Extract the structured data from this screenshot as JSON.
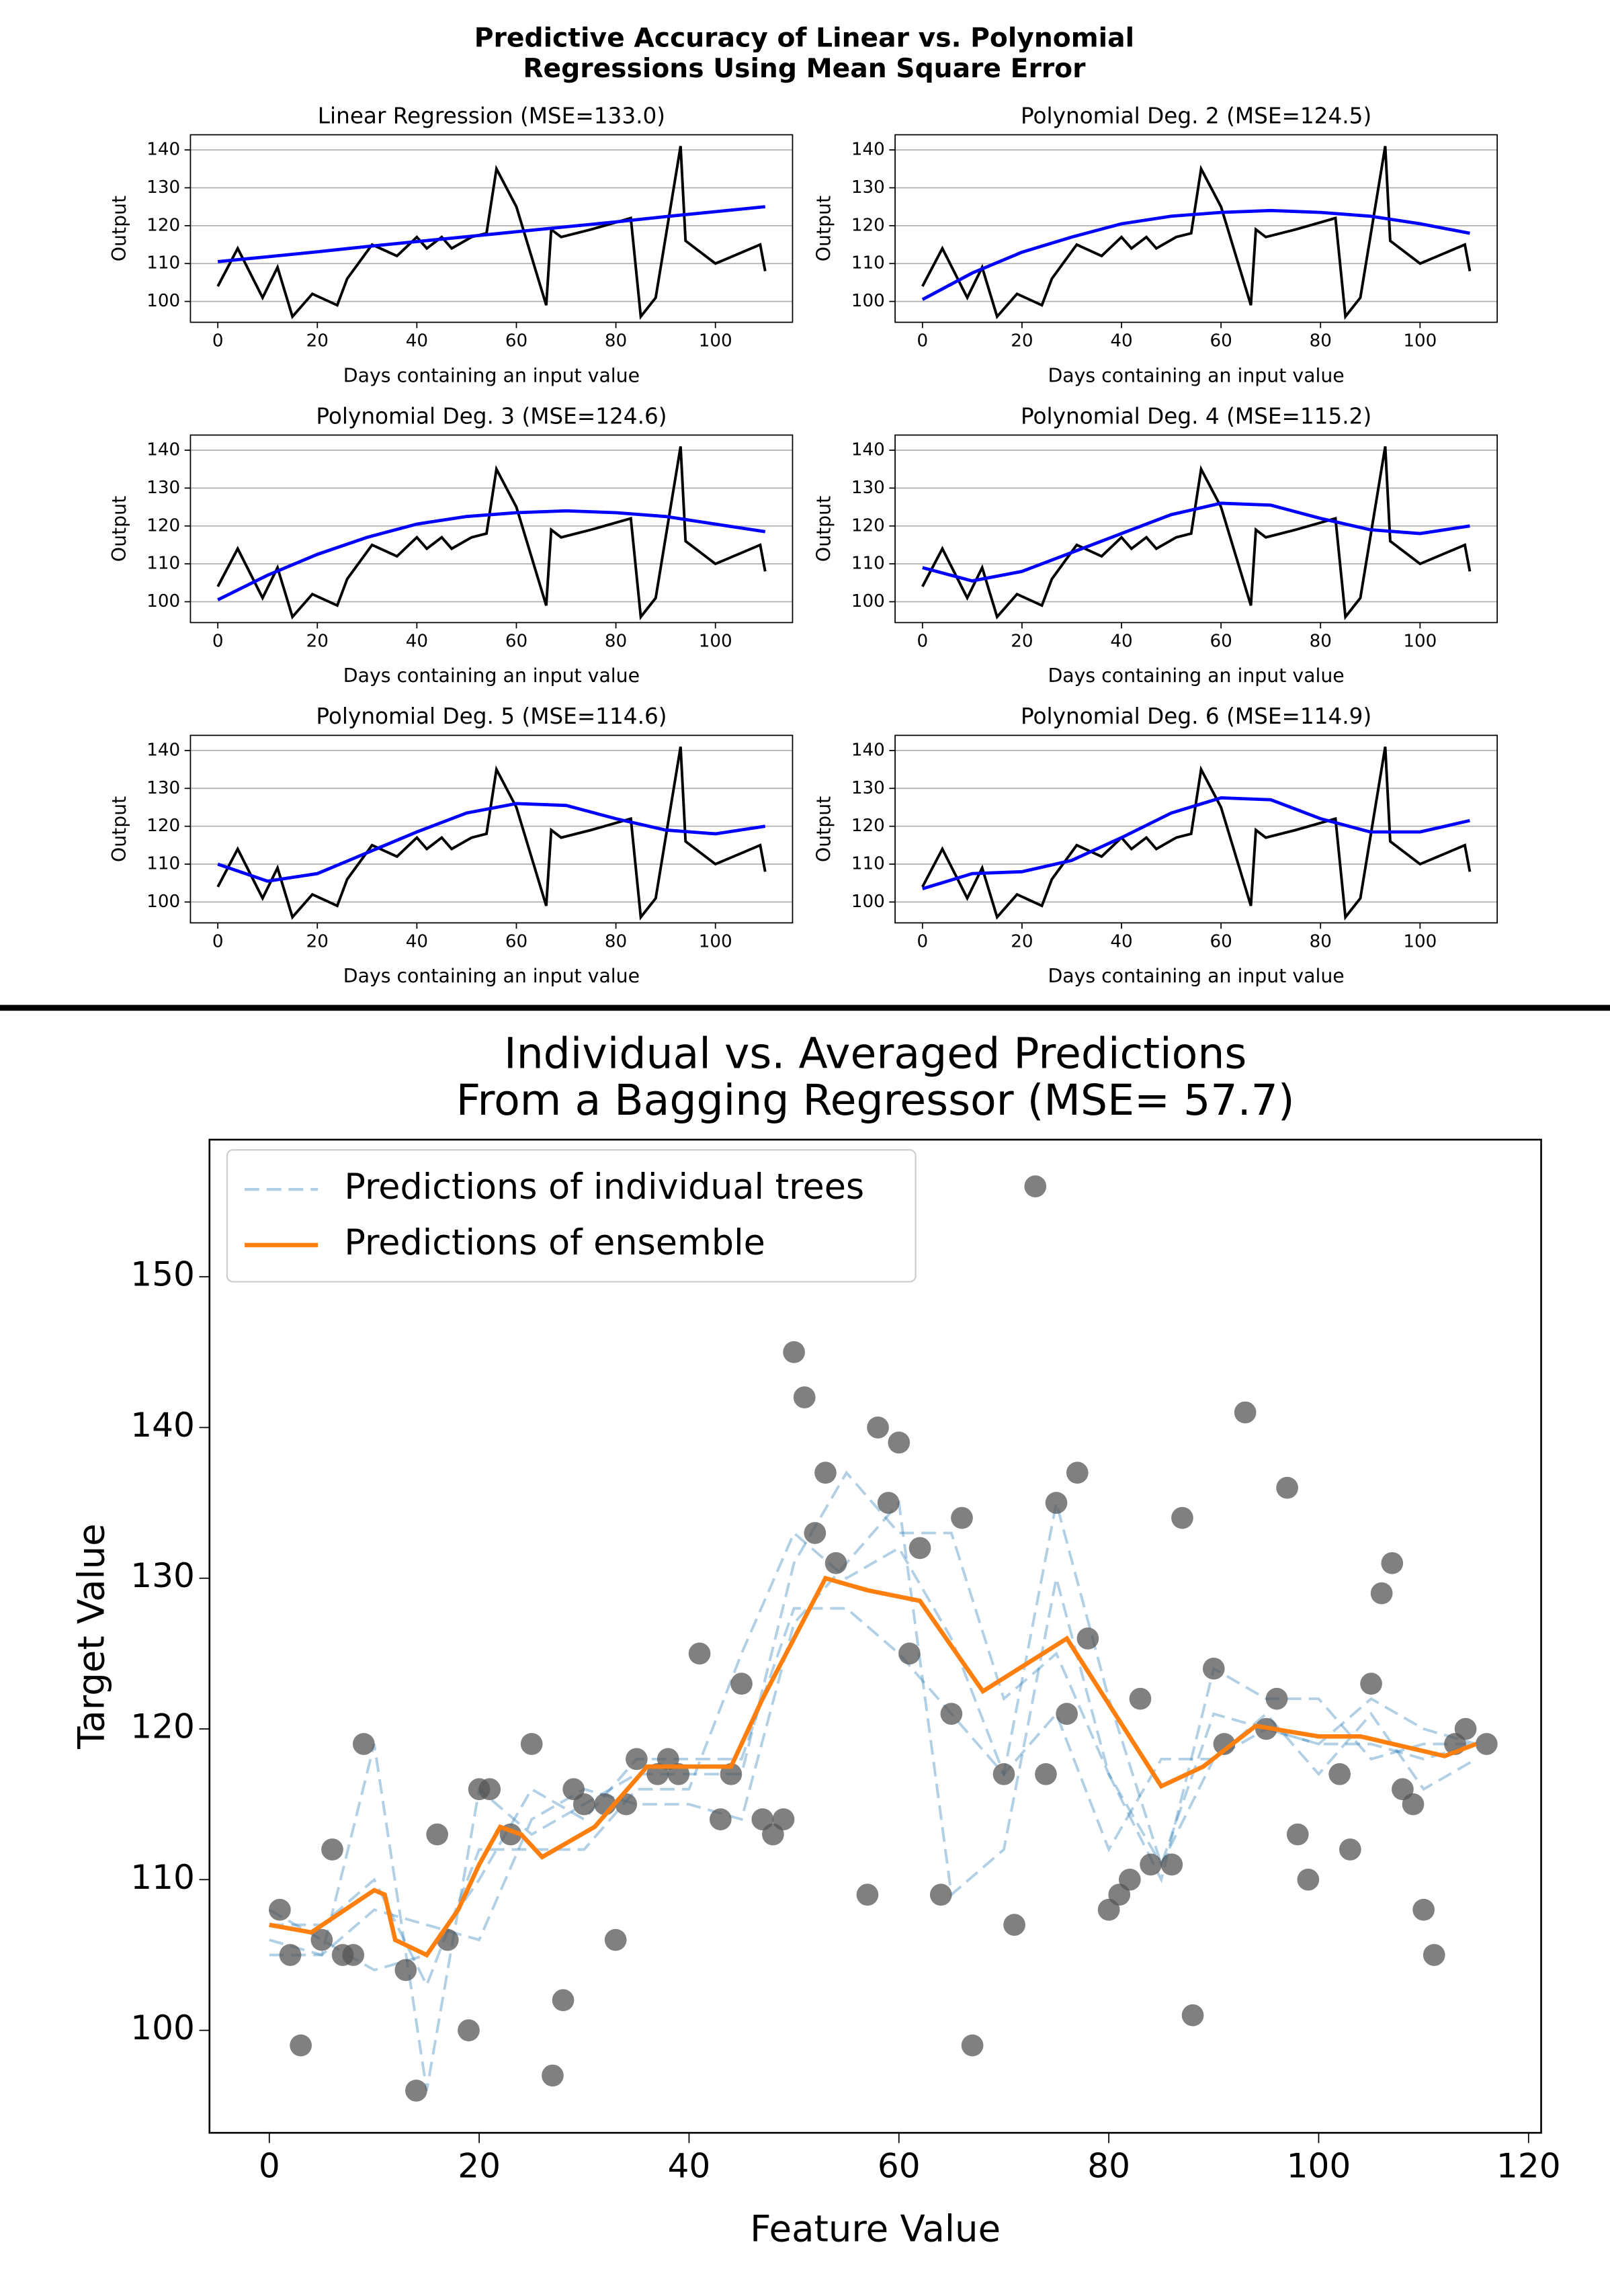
{
  "figure_title": [
    "Predictive Accuracy of Linear vs. Polynomial",
    "Regressions Using Mean Square Error"
  ],
  "chart_data": [
    {
      "type": "line",
      "title": "Linear Regression (MSE=133.0)",
      "xlabel": "Days containing an input value",
      "ylabel": "Output",
      "xlim": [
        -5.5,
        115.5
      ],
      "ylim": [
        94.5,
        144
      ],
      "xticks": [
        0,
        20,
        40,
        60,
        80,
        100
      ],
      "yticks": [
        100,
        110,
        120,
        130,
        140
      ],
      "grid": true,
      "series": [
        {
          "color": "#000000",
          "x": [
            0,
            4,
            9,
            12,
            15,
            19,
            24,
            26,
            31,
            36,
            40,
            42,
            45,
            47,
            51,
            54,
            56,
            60,
            66,
            67,
            69,
            75,
            83,
            85,
            88,
            93,
            94,
            100,
            109,
            110
          ],
          "values": [
            104,
            114,
            101,
            109,
            96,
            102,
            99,
            106,
            115,
            112,
            117,
            114,
            117,
            114,
            117,
            118,
            135,
            125,
            99,
            119,
            117,
            119,
            122,
            96,
            101,
            141,
            116,
            110,
            115,
            108
          ]
        },
        {
          "color": "#0000ff",
          "x": [
            0,
            10,
            20,
            30,
            40,
            50,
            60,
            70,
            80,
            90,
            100,
            110
          ],
          "values": [
            110.5,
            111.8,
            113.1,
            114.5,
            115.8,
            117.1,
            118.4,
            119.7,
            121,
            122.4,
            123.7,
            125
          ]
        }
      ]
    },
    {
      "type": "line",
      "title": "Polynomial Deg. 2 (MSE=124.5)",
      "xlabel": "Days containing an input value",
      "ylabel": "Output",
      "xlim": [
        -5.5,
        115.5
      ],
      "ylim": [
        94.5,
        144
      ],
      "xticks": [
        0,
        20,
        40,
        60,
        80,
        100
      ],
      "yticks": [
        100,
        110,
        120,
        130,
        140
      ],
      "grid": true,
      "series": [
        {
          "color": "#000000",
          "x": [
            0,
            4,
            9,
            12,
            15,
            19,
            24,
            26,
            31,
            36,
            40,
            42,
            45,
            47,
            51,
            54,
            56,
            60,
            66,
            67,
            69,
            75,
            83,
            85,
            88,
            93,
            94,
            100,
            109,
            110
          ],
          "values": [
            104,
            114,
            101,
            109,
            96,
            102,
            99,
            106,
            115,
            112,
            117,
            114,
            117,
            114,
            117,
            118,
            135,
            125,
            99,
            119,
            117,
            119,
            122,
            96,
            101,
            141,
            116,
            110,
            115,
            108
          ]
        },
        {
          "color": "#0000ff",
          "x": [
            0,
            10,
            20,
            30,
            40,
            50,
            60,
            70,
            80,
            90,
            100,
            110
          ],
          "values": [
            100.5,
            107.5,
            113,
            117,
            120.5,
            122.5,
            123.5,
            124,
            123.5,
            122.5,
            120.5,
            118
          ]
        }
      ]
    },
    {
      "type": "line",
      "title": "Polynomial Deg. 3 (MSE=124.6)",
      "xlabel": "Days containing an input value",
      "ylabel": "Output",
      "xlim": [
        -5.5,
        115.5
      ],
      "ylim": [
        94.5,
        144
      ],
      "xticks": [
        0,
        20,
        40,
        60,
        80,
        100
      ],
      "yticks": [
        100,
        110,
        120,
        130,
        140
      ],
      "grid": true,
      "series": [
        {
          "color": "#000000",
          "x": [
            0,
            4,
            9,
            12,
            15,
            19,
            24,
            26,
            31,
            36,
            40,
            42,
            45,
            47,
            51,
            54,
            56,
            60,
            66,
            67,
            69,
            75,
            83,
            85,
            88,
            93,
            94,
            100,
            109,
            110
          ],
          "values": [
            104,
            114,
            101,
            109,
            96,
            102,
            99,
            106,
            115,
            112,
            117,
            114,
            117,
            114,
            117,
            118,
            135,
            125,
            99,
            119,
            117,
            119,
            122,
            96,
            101,
            141,
            116,
            110,
            115,
            108
          ]
        },
        {
          "color": "#0000ff",
          "x": [
            0,
            10,
            20,
            30,
            40,
            50,
            60,
            70,
            80,
            90,
            100,
            110
          ],
          "values": [
            100.5,
            107,
            112.5,
            117,
            120.5,
            122.5,
            123.5,
            124,
            123.5,
            122.5,
            120.5,
            118.5
          ]
        }
      ]
    },
    {
      "type": "line",
      "title": "Polynomial Deg. 4 (MSE=115.2)",
      "xlabel": "Days containing an input value",
      "ylabel": "Output",
      "xlim": [
        -5.5,
        115.5
      ],
      "ylim": [
        94.5,
        144
      ],
      "xticks": [
        0,
        20,
        40,
        60,
        80,
        100
      ],
      "yticks": [
        100,
        110,
        120,
        130,
        140
      ],
      "grid": true,
      "series": [
        {
          "color": "#000000",
          "x": [
            0,
            4,
            9,
            12,
            15,
            19,
            24,
            26,
            31,
            36,
            40,
            42,
            45,
            47,
            51,
            54,
            56,
            60,
            66,
            67,
            69,
            75,
            83,
            85,
            88,
            93,
            94,
            100,
            109,
            110
          ],
          "values": [
            104,
            114,
            101,
            109,
            96,
            102,
            99,
            106,
            115,
            112,
            117,
            114,
            117,
            114,
            117,
            118,
            135,
            125,
            99,
            119,
            117,
            119,
            122,
            96,
            101,
            141,
            116,
            110,
            115,
            108
          ]
        },
        {
          "color": "#0000ff",
          "x": [
            0,
            10,
            20,
            30,
            40,
            50,
            60,
            70,
            80,
            90,
            100,
            110
          ],
          "values": [
            109,
            105.5,
            108,
            113,
            118,
            123,
            126,
            125.5,
            122,
            119,
            118,
            120
          ]
        }
      ]
    },
    {
      "type": "line",
      "title": "Polynomial Deg. 5 (MSE=114.6)",
      "xlabel": "Days containing an input value",
      "ylabel": "Output",
      "xlim": [
        -5.5,
        115.5
      ],
      "ylim": [
        94.5,
        144
      ],
      "xticks": [
        0,
        20,
        40,
        60,
        80,
        100
      ],
      "yticks": [
        100,
        110,
        120,
        130,
        140
      ],
      "grid": true,
      "series": [
        {
          "color": "#000000",
          "x": [
            0,
            4,
            9,
            12,
            15,
            19,
            24,
            26,
            31,
            36,
            40,
            42,
            45,
            47,
            51,
            54,
            56,
            60,
            66,
            67,
            69,
            75,
            83,
            85,
            88,
            93,
            94,
            100,
            109,
            110
          ],
          "values": [
            104,
            114,
            101,
            109,
            96,
            102,
            99,
            106,
            115,
            112,
            117,
            114,
            117,
            114,
            117,
            118,
            135,
            125,
            99,
            119,
            117,
            119,
            122,
            96,
            101,
            141,
            116,
            110,
            115,
            108
          ]
        },
        {
          "color": "#0000ff",
          "x": [
            0,
            10,
            20,
            30,
            40,
            50,
            60,
            70,
            80,
            90,
            100,
            110
          ],
          "values": [
            110,
            105.5,
            107.5,
            113,
            118.5,
            123.5,
            126,
            125.5,
            122,
            119,
            118,
            120
          ]
        }
      ]
    },
    {
      "type": "line",
      "title": "Polynomial Deg. 6 (MSE=114.9)",
      "xlabel": "Days containing an input value",
      "ylabel": "Output",
      "xlim": [
        -5.5,
        115.5
      ],
      "ylim": [
        94.5,
        144
      ],
      "xticks": [
        0,
        20,
        40,
        60,
        80,
        100
      ],
      "yticks": [
        100,
        110,
        120,
        130,
        140
      ],
      "grid": true,
      "series": [
        {
          "color": "#000000",
          "x": [
            0,
            4,
            9,
            12,
            15,
            19,
            24,
            26,
            31,
            36,
            40,
            42,
            45,
            47,
            51,
            54,
            56,
            60,
            66,
            67,
            69,
            75,
            83,
            85,
            88,
            93,
            94,
            100,
            109,
            110
          ],
          "values": [
            104,
            114,
            101,
            109,
            96,
            102,
            99,
            106,
            115,
            112,
            117,
            114,
            117,
            114,
            117,
            118,
            135,
            125,
            99,
            119,
            117,
            119,
            122,
            96,
            101,
            141,
            116,
            110,
            115,
            108
          ]
        },
        {
          "color": "#0000ff",
          "x": [
            0,
            10,
            20,
            30,
            40,
            50,
            60,
            70,
            80,
            90,
            100,
            110
          ],
          "values": [
            103.5,
            107.5,
            108,
            111,
            117,
            123.5,
            127.5,
            127,
            122,
            118.5,
            118.5,
            121.5
          ]
        }
      ]
    },
    {
      "type": "ensemble",
      "title": [
        "Individual vs. Averaged Predictions",
        "From a Bagging Regressor (MSE=  57.7)"
      ],
      "xlabel": "Feature Value",
      "ylabel": "Target Value",
      "xlim": [
        -5.7,
        121.2
      ],
      "ylim": [
        93.2,
        159.1
      ],
      "xticks": [
        0,
        20,
        40,
        60,
        80,
        100,
        120
      ],
      "yticks": [
        100,
        110,
        120,
        130,
        140,
        150
      ],
      "legend": "upper left",
      "points": {
        "color": "#555555",
        "x": [
          1,
          2,
          3,
          5,
          6,
          7,
          8,
          9,
          13,
          14,
          16,
          17,
          19,
          20,
          21,
          23,
          25,
          27,
          28,
          29,
          30,
          32,
          33,
          34,
          35,
          37,
          38,
          39,
          41,
          43,
          44,
          45,
          47,
          48,
          49,
          50,
          51,
          52,
          53,
          54,
          57,
          58,
          59,
          60,
          61,
          62,
          64,
          65,
          66,
          67,
          70,
          71,
          73,
          74,
          75,
          76,
          77,
          78,
          80,
          81,
          82,
          83,
          84,
          86,
          87,
          88,
          90,
          91,
          93,
          95,
          96,
          97,
          98,
          99,
          102,
          103,
          105,
          106,
          107,
          108,
          109,
          110,
          111,
          113,
          114,
          116
        ],
        "values": [
          108,
          105,
          99,
          106,
          112,
          105,
          105,
          119,
          104,
          96,
          113,
          106,
          100,
          116,
          116,
          113,
          119,
          97,
          102,
          116,
          115,
          115,
          106,
          115,
          118,
          117,
          118,
          117,
          125,
          114,
          117,
          123,
          114,
          113,
          114,
          145,
          142,
          133,
          137,
          131,
          109,
          140,
          135,
          139,
          125,
          132,
          109,
          121,
          134,
          99,
          117,
          107,
          156,
          117,
          135,
          121,
          137,
          126,
          108,
          109,
          110,
          122,
          111,
          111,
          134,
          101,
          124,
          119,
          141,
          120,
          122,
          136,
          113,
          110,
          117,
          112,
          123,
          129,
          131,
          116,
          115,
          108,
          105,
          119,
          120,
          119
        ]
      },
      "trees": {
        "name": "Predictions of individual trees",
        "color": "#1f77b4",
        "x": [
          0,
          5,
          10,
          15,
          20,
          25,
          30,
          35,
          40,
          45,
          50,
          55,
          60,
          65,
          70,
          75,
          80,
          85,
          90,
          95,
          100,
          105,
          110,
          115
        ],
        "lines": [
          [
            106,
            105,
            119,
            96,
            116,
            113,
            115,
            117,
            117,
            117,
            131,
            137,
            133,
            133,
            122,
            125,
            117,
            111,
            118,
            120,
            119,
            119,
            118,
            119
          ],
          [
            108,
            106,
            104,
            105,
            110,
            116,
            114,
            118,
            118,
            118,
            128,
            128,
            125,
            121,
            117,
            135,
            122,
            111,
            121,
            120,
            119,
            122,
            120,
            119
          ],
          [
            107,
            107,
            110,
            103,
            112,
            112,
            112,
            116,
            116,
            125,
            133,
            130,
            132,
            126,
            117,
            121,
            112,
            118,
            118,
            121,
            117,
            121,
            116,
            118
          ],
          [
            105,
            105,
            108,
            107,
            106,
            114,
            116,
            115,
            115,
            114,
            127,
            131,
            135,
            109,
            112,
            130,
            117,
            110,
            124,
            122,
            122,
            118,
            119,
            119
          ]
        ]
      },
      "ensemble": {
        "name": "Predictions of ensemble",
        "color": "#ff7f0e",
        "x": [
          0,
          4,
          10,
          11,
          12,
          15,
          18,
          20,
          22,
          24,
          26,
          31,
          36,
          44,
          47,
          53,
          57,
          62,
          68,
          76,
          85,
          89,
          94,
          100,
          104,
          112,
          115
        ],
        "values": [
          107,
          106.5,
          109.3,
          109,
          106,
          105,
          108,
          111,
          113.5,
          113,
          111.5,
          113.5,
          117.5,
          117.5,
          122,
          130,
          129.2,
          128.5,
          122.5,
          126,
          116.2,
          117.5,
          120.2,
          119.5,
          119.5,
          118.2,
          119
        ]
      }
    }
  ]
}
